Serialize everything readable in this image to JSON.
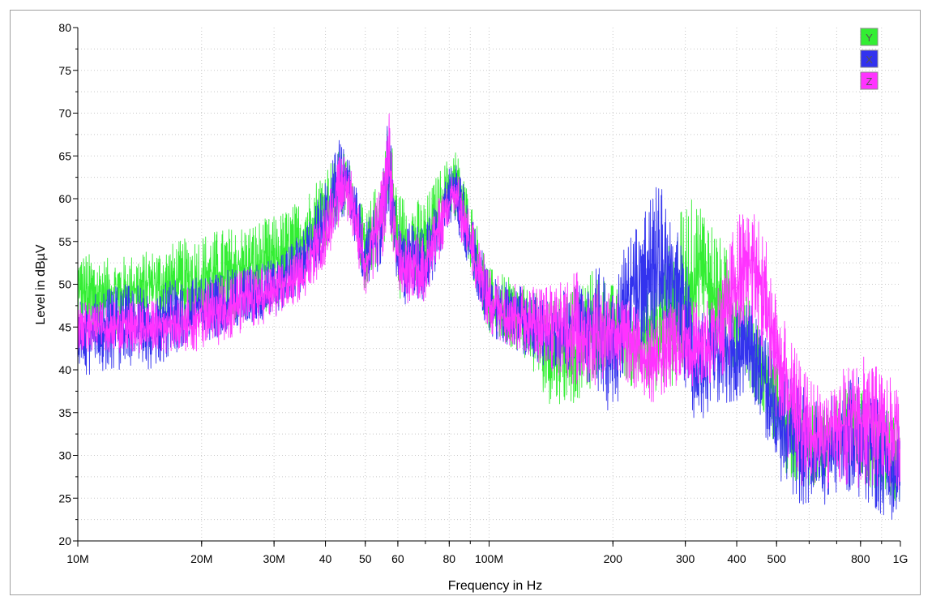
{
  "chart_data": {
    "type": "line",
    "title": "",
    "xlabel": "Frequency in Hz",
    "ylabel": "Level in dBµV",
    "x_scale": "log",
    "xlim": [
      10000000,
      1000000000
    ],
    "ylim": [
      20,
      80
    ],
    "grid": true,
    "legend_position": "top-right",
    "x_ticks": [
      {
        "value": 10000000,
        "label": "10M"
      },
      {
        "value": 20000000,
        "label": "20M"
      },
      {
        "value": 30000000,
        "label": "30M"
      },
      {
        "value": 40000000,
        "label": "40"
      },
      {
        "value": 50000000,
        "label": "50"
      },
      {
        "value": 60000000,
        "label": "60"
      },
      {
        "value": 80000000,
        "label": "80"
      },
      {
        "value": 100000000,
        "label": "100M"
      },
      {
        "value": 200000000,
        "label": "200"
      },
      {
        "value": 300000000,
        "label": "300"
      },
      {
        "value": 400000000,
        "label": "400"
      },
      {
        "value": 500000000,
        "label": "500"
      },
      {
        "value": 800000000,
        "label": "800"
      },
      {
        "value": 1000000000,
        "label": "1G"
      }
    ],
    "y_ticks": [
      20,
      25,
      30,
      35,
      40,
      45,
      50,
      55,
      60,
      65,
      70,
      75,
      80
    ],
    "series": [
      {
        "name": "Y",
        "color": "#33ee33",
        "x": [
          10000000,
          12000000,
          15000000,
          20000000,
          25000000,
          30000000,
          35000000,
          40000000,
          44000000,
          46000000,
          50000000,
          55000000,
          57000000,
          60000000,
          65000000,
          70000000,
          75000000,
          80000000,
          83000000,
          90000000,
          100000000,
          120000000,
          140000000,
          160000000,
          180000000,
          200000000,
          220000000,
          250000000,
          280000000,
          300000000,
          330000000,
          360000000,
          400000000,
          430000000,
          470000000,
          520000000,
          580000000,
          650000000,
          720000000,
          800000000,
          900000000,
          1000000000
        ],
        "low": [
          44,
          44,
          45,
          45,
          46,
          47,
          50,
          54,
          58,
          58,
          49,
          53,
          58,
          48,
          50,
          50,
          55,
          58,
          58,
          52,
          44,
          42,
          36,
          36,
          38,
          42,
          38,
          37,
          38,
          38,
          44,
          42,
          39,
          38,
          34,
          28,
          26,
          27,
          28,
          27,
          24,
          24
        ],
        "high": [
          54,
          53,
          54,
          56,
          57,
          58,
          60,
          64,
          66,
          64,
          58,
          64,
          70,
          61,
          60,
          60,
          63,
          65,
          66,
          60,
          52,
          50,
          48,
          50,
          52,
          50,
          48,
          50,
          56,
          60,
          60,
          56,
          52,
          48,
          44,
          40,
          36,
          36,
          38,
          38,
          36,
          34
        ]
      },
      {
        "name": "X",
        "color": "#3333ee",
        "x": [
          10000000,
          12000000,
          15000000,
          20000000,
          25000000,
          30000000,
          35000000,
          40000000,
          44000000,
          46000000,
          50000000,
          55000000,
          57000000,
          60000000,
          65000000,
          70000000,
          75000000,
          80000000,
          83000000,
          90000000,
          100000000,
          120000000,
          140000000,
          160000000,
          180000000,
          200000000,
          220000000,
          240000000,
          260000000,
          280000000,
          300000000,
          320000000,
          350000000,
          400000000,
          430000000,
          470000000,
          520000000,
          580000000,
          650000000,
          720000000,
          800000000,
          900000000,
          1000000000
        ],
        "low": [
          39,
          40,
          40,
          43,
          45,
          46,
          49,
          53,
          58,
          57,
          49,
          52,
          58,
          47,
          48,
          48,
          52,
          57,
          57,
          51,
          44,
          42,
          40,
          40,
          38,
          34,
          42,
          42,
          44,
          44,
          38,
          32,
          36,
          36,
          38,
          32,
          26,
          24,
          24,
          26,
          25,
          23,
          22
        ],
        "high": [
          48,
          50,
          50,
          51,
          52,
          53,
          56,
          62,
          68,
          64,
          57,
          62,
          71,
          58,
          57,
          57,
          60,
          64,
          65,
          59,
          51,
          50,
          48,
          50,
          52,
          52,
          56,
          60,
          62,
          58,
          54,
          46,
          48,
          48,
          48,
          44,
          40,
          38,
          36,
          38,
          40,
          36,
          34
        ]
      },
      {
        "name": "Z",
        "color": "#ff33ff",
        "x": [
          10000000,
          12000000,
          15000000,
          20000000,
          25000000,
          30000000,
          35000000,
          40000000,
          44000000,
          46000000,
          50000000,
          55000000,
          57000000,
          60000000,
          65000000,
          70000000,
          75000000,
          80000000,
          83000000,
          90000000,
          100000000,
          120000000,
          140000000,
          160000000,
          180000000,
          200000000,
          220000000,
          250000000,
          280000000,
          300000000,
          330000000,
          360000000,
          400000000,
          430000000,
          470000000,
          520000000,
          580000000,
          650000000,
          720000000,
          800000000,
          900000000,
          1000000000
        ],
        "low": [
          42,
          42,
          42,
          42,
          44,
          46,
          48,
          52,
          58,
          57,
          48,
          53,
          58,
          47,
          48,
          48,
          52,
          57,
          57,
          51,
          44,
          42,
          40,
          38,
          38,
          40,
          38,
          36,
          38,
          38,
          38,
          38,
          42,
          46,
          40,
          30,
          26,
          26,
          26,
          26,
          26,
          26
        ],
        "high": [
          48,
          48,
          48,
          50,
          52,
          52,
          54,
          60,
          66,
          64,
          56,
          63,
          72,
          57,
          56,
          56,
          60,
          62,
          64,
          58,
          52,
          50,
          50,
          52,
          50,
          50,
          48,
          46,
          48,
          48,
          48,
          50,
          58,
          60,
          56,
          46,
          40,
          38,
          40,
          42,
          40,
          38
        ]
      }
    ]
  }
}
